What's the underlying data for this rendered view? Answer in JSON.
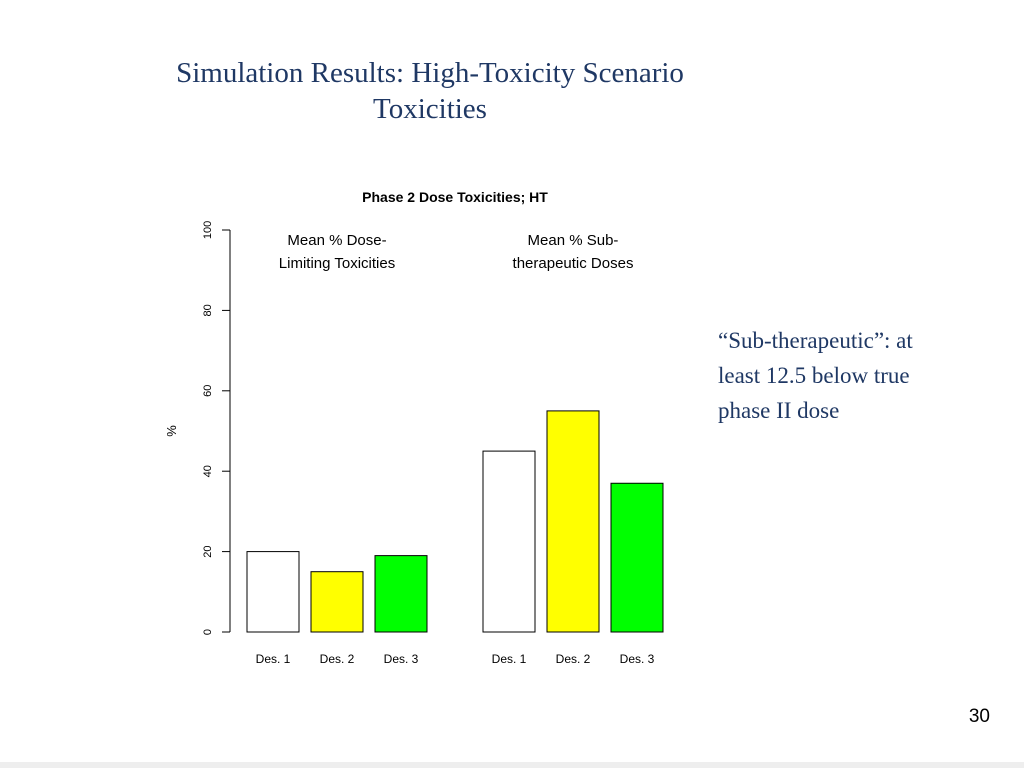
{
  "slide": {
    "title_line1": "Simulation Results: High-Toxicity Scenario",
    "title_line2": "Toxicities",
    "note_line1": "“Sub-therapeutic”: at",
    "note_line2": "least 12.5 below true",
    "note_line3": "phase II dose",
    "page_number": "30"
  },
  "chart_data": {
    "type": "bar",
    "title": "Phase 2 Dose Toxicities; HT",
    "ylabel": "%",
    "xlabel": "",
    "ylim": [
      0,
      100
    ],
    "yticks": [
      0,
      20,
      40,
      60,
      80,
      100
    ],
    "grid": false,
    "groups": [
      {
        "label_line1": "Mean % Dose-",
        "label_line2": "Limiting Toxicities",
        "categories": [
          "Des. 1",
          "Des. 2",
          "Des. 3"
        ],
        "values": [
          20,
          15,
          19
        ],
        "colors": [
          "#ffffff",
          "#ffff00",
          "#00ff00"
        ]
      },
      {
        "label_line1": "Mean % Sub-",
        "label_line2": "therapeutic Doses",
        "categories": [
          "Des. 1",
          "Des. 2",
          "Des.  3"
        ],
        "values": [
          45,
          55,
          37
        ],
        "colors": [
          "#ffffff",
          "#ffff00",
          "#00ff00"
        ]
      }
    ]
  }
}
